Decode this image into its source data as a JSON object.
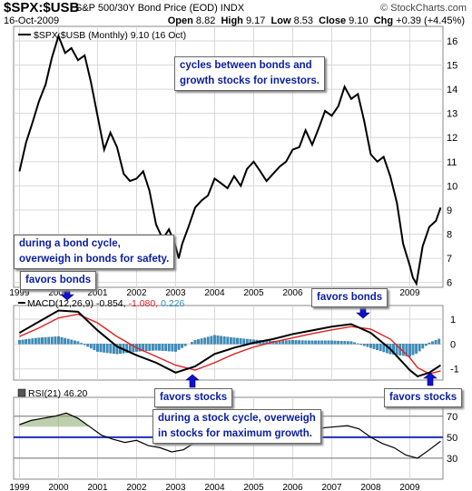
{
  "header": {
    "ticker": "$SPX:$USB",
    "description": "S&P 500/30Y Bond Price (EOD)  INDX",
    "attribution": "© StockCharts.com",
    "date": "16-Oct-2009",
    "open_label": "Open",
    "open": "8.82",
    "high_label": "High",
    "high": "9.17",
    "low_label": "Low",
    "low": "8.53",
    "close_label": "Close",
    "close": "9.10",
    "chg_label": "Chg",
    "chg": "+0.39 (+4.45%)"
  },
  "annotations": {
    "cycles": "cycles between bonds and\ngrowth stocks for investors.",
    "bond_cycle": "during a bond cycle,\noverweigh in bonds for safety.",
    "favors_bonds_1": "favors bonds",
    "favors_bonds_2": "favors bonds",
    "favors_stocks_1": "favors stocks",
    "favors_stocks_2": "favors stocks",
    "stock_cycle": "during a stock cycle, overweigh\nin stocks for maximum growth."
  },
  "colors": {
    "price_line": "#000000",
    "macd_signal": "#e02020",
    "macd_hist": "#3a8fc0",
    "rsi_band": "#1f2fbf",
    "annotation_text": "#0a1e9e",
    "arrow": "#1010d0"
  },
  "chart_data": [
    {
      "type": "line",
      "legend": "$SPX:$USB (Monthly) 9.10 (16 Oct)",
      "x_ticks": [
        "1999",
        "2000",
        "2001",
        "2002",
        "2003",
        "2004",
        "2005",
        "2006",
        "2007",
        "2008",
        "2009"
      ],
      "yticks": [
        6,
        7,
        8,
        9,
        10,
        11,
        12,
        13,
        14,
        15,
        16
      ],
      "ylim": [
        5.8,
        16.6
      ],
      "grid": true,
      "series": [
        {
          "name": "$SPX:$USB",
          "x": [
            1999.0,
            1999.17,
            1999.33,
            1999.5,
            1999.67,
            1999.83,
            2000.0,
            2000.17,
            2000.33,
            2000.5,
            2000.67,
            2000.83,
            2001.0,
            2001.17,
            2001.33,
            2001.5,
            2001.67,
            2001.83,
            2002.0,
            2002.17,
            2002.33,
            2002.5,
            2002.67,
            2002.83,
            2003.0,
            2003.08,
            2003.17,
            2003.33,
            2003.5,
            2003.67,
            2003.83,
            2004.0,
            2004.17,
            2004.33,
            2004.5,
            2004.67,
            2004.83,
            2005.0,
            2005.17,
            2005.33,
            2005.5,
            2005.67,
            2005.83,
            2006.0,
            2006.17,
            2006.33,
            2006.5,
            2006.67,
            2006.83,
            2007.0,
            2007.17,
            2007.33,
            2007.5,
            2007.67,
            2007.83,
            2008.0,
            2008.17,
            2008.33,
            2008.5,
            2008.67,
            2008.83,
            2009.0,
            2009.08,
            2009.17,
            2009.33,
            2009.5,
            2009.67,
            2009.79
          ],
          "values": [
            10.6,
            11.8,
            12.6,
            13.5,
            14.2,
            15.3,
            16.2,
            15.5,
            15.7,
            15.2,
            15.4,
            14.3,
            12.9,
            11.5,
            12.2,
            11.6,
            10.5,
            10.2,
            10.3,
            10.6,
            9.8,
            8.4,
            7.8,
            8.2,
            7.5,
            7.0,
            7.6,
            8.3,
            9.1,
            9.4,
            9.6,
            10.3,
            10.1,
            9.9,
            10.4,
            10.0,
            10.7,
            11.0,
            10.6,
            10.2,
            10.5,
            10.8,
            11.0,
            11.5,
            11.6,
            12.3,
            11.7,
            12.4,
            13.1,
            12.9,
            13.3,
            14.1,
            13.6,
            13.8,
            12.7,
            11.3,
            11.0,
            11.2,
            10.4,
            9.3,
            7.6,
            6.7,
            6.2,
            5.95,
            7.5,
            8.3,
            8.55,
            9.1
          ]
        }
      ]
    },
    {
      "type": "line",
      "legend": "MACD(12,26,9) -0.854, -1.080, 0.226",
      "legend_parts": {
        "name": "MACD(12,26,9)",
        "macd": "-0.854,",
        "signal": "-1.080,",
        "hist": "0.226"
      },
      "yticks": [
        1,
        0,
        -1
      ],
      "ylim": [
        -1.45,
        1.55
      ],
      "grid": true,
      "x": [
        1999.0,
        1999.5,
        2000.0,
        2000.5,
        2001.0,
        2001.5,
        2002.0,
        2002.5,
        2003.0,
        2003.5,
        2004.0,
        2004.5,
        2005.0,
        2005.5,
        2006.0,
        2006.5,
        2007.0,
        2007.5,
        2008.0,
        2008.5,
        2009.0,
        2009.2,
        2009.5,
        2009.79
      ],
      "series": [
        {
          "name": "MACD",
          "values": [
            0.45,
            0.9,
            1.35,
            1.3,
            0.55,
            -0.1,
            -0.45,
            -0.75,
            -1.15,
            -0.9,
            -0.4,
            -0.15,
            0.05,
            0.2,
            0.4,
            0.55,
            0.7,
            0.8,
            0.45,
            -0.2,
            -1.05,
            -1.3,
            -1.15,
            -0.854
          ]
        },
        {
          "name": "Signal",
          "values": [
            0.3,
            0.65,
            1.05,
            1.2,
            0.85,
            0.3,
            -0.15,
            -0.5,
            -0.85,
            -1.05,
            -0.75,
            -0.4,
            -0.12,
            0.08,
            0.25,
            0.42,
            0.57,
            0.7,
            0.6,
            0.2,
            -0.55,
            -0.95,
            -1.2,
            -1.08
          ]
        },
        {
          "name": "Histogram",
          "values": [
            0.15,
            0.25,
            0.3,
            0.1,
            -0.3,
            -0.4,
            -0.3,
            -0.25,
            -0.3,
            0.15,
            0.35,
            0.25,
            0.17,
            0.12,
            0.15,
            0.13,
            0.13,
            0.1,
            -0.15,
            -0.4,
            -0.5,
            -0.35,
            0.05,
            0.226
          ]
        }
      ]
    },
    {
      "type": "line",
      "legend": "RSI(21) 46.20",
      "yticks": [
        70,
        50,
        30
      ],
      "ylim": [
        10,
        88
      ],
      "reference_line": 50,
      "grid": true,
      "x_ticks": [
        "1999",
        "2000",
        "2001",
        "2002",
        "2003",
        "2004",
        "2005",
        "2006",
        "2007",
        "2008",
        "2009"
      ],
      "series": [
        {
          "name": "RSI",
          "x": [
            1999.0,
            1999.3,
            1999.6,
            1999.9,
            2000.2,
            2000.5,
            2000.8,
            2001.1,
            2001.4,
            2001.7,
            2002.0,
            2002.3,
            2002.6,
            2002.9,
            2003.2,
            2003.5,
            2003.8,
            2004.1,
            2004.4,
            2004.7,
            2005.0,
            2005.3,
            2005.6,
            2005.9,
            2006.2,
            2006.5,
            2006.8,
            2007.1,
            2007.4,
            2007.7,
            2008.0,
            2008.3,
            2008.6,
            2008.9,
            2009.2,
            2009.5,
            2009.79
          ],
          "values": [
            62,
            66,
            68,
            70,
            73,
            68,
            60,
            52,
            48,
            45,
            47,
            42,
            40,
            36,
            38,
            45,
            52,
            54,
            51,
            53,
            55,
            53,
            54,
            57,
            58,
            56,
            59,
            60,
            61,
            58,
            50,
            44,
            40,
            33,
            30,
            38,
            46.2
          ]
        }
      ]
    }
  ]
}
